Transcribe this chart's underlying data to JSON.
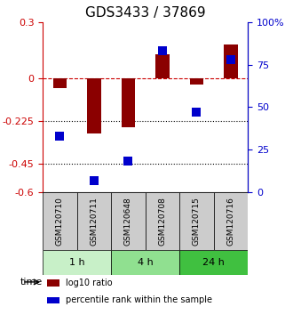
{
  "title": "GDS3433 / 37869",
  "samples": [
    "GSM120710",
    "GSM120711",
    "GSM120648",
    "GSM120708",
    "GSM120715",
    "GSM120716"
  ],
  "groups": [
    {
      "label": "1 h",
      "indices": [
        0,
        1
      ],
      "color": "#c8f0c8"
    },
    {
      "label": "4 h",
      "indices": [
        2,
        3
      ],
      "color": "#90e090"
    },
    {
      "label": "24 h",
      "indices": [
        4,
        5
      ],
      "color": "#40c040"
    }
  ],
  "log10_ratio": [
    -0.05,
    -0.29,
    -0.255,
    0.13,
    -0.03,
    0.18
  ],
  "percentile_rank": [
    33,
    7,
    18,
    83,
    47,
    78
  ],
  "ylim_left": [
    -0.6,
    0.3
  ],
  "ylim_right": [
    0,
    100
  ],
  "yticks_left": [
    -0.6,
    -0.45,
    -0.225,
    0.0,
    0.3
  ],
  "ytick_labels_left": [
    "-0.6",
    "-0.45",
    "-0.225",
    "0",
    "0.3"
  ],
  "yticks_right": [
    0,
    25,
    50,
    75,
    100
  ],
  "ytick_labels_right": [
    "0",
    "25",
    "50",
    "75",
    "100%"
  ],
  "hlines": [
    0.0,
    -0.225,
    -0.45
  ],
  "hline_styles": [
    "dashed",
    "dotted",
    "dotted"
  ],
  "hline_colors": [
    "#cc0000",
    "#000000",
    "#000000"
  ],
  "bar_color": "#8b0000",
  "dot_color": "#0000cc",
  "bar_width": 0.4,
  "dot_size": 60,
  "legend_labels": [
    "log10 ratio",
    "percentile rank within the sample"
  ],
  "time_label": "time",
  "sample_box_color": "#cccccc",
  "title_fontsize": 11,
  "tick_fontsize": 8,
  "label_fontsize": 8
}
